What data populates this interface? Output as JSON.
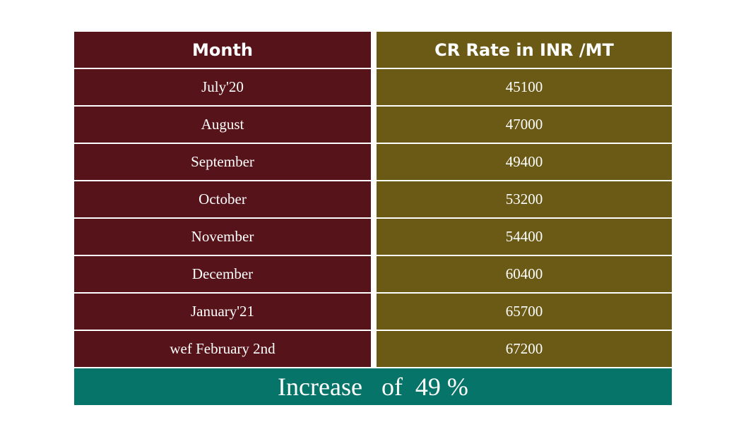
{
  "chart_data": {
    "type": "table",
    "columns": [
      "Month",
      "CR Rate in INR /MT"
    ],
    "rows": [
      [
        "July'20",
        "45100"
      ],
      [
        "August",
        "47000"
      ],
      [
        "September",
        "49400"
      ],
      [
        "October",
        "53200"
      ],
      [
        "November",
        "54400"
      ],
      [
        "December",
        "60400"
      ],
      [
        "January'21",
        "65700"
      ],
      [
        "wef February 2nd",
        "67200"
      ]
    ],
    "footer": "Increase   of  49 %"
  },
  "colors": {
    "month_column": "#56141a",
    "rate_column": "#6b5a15",
    "footer": "#077469"
  }
}
